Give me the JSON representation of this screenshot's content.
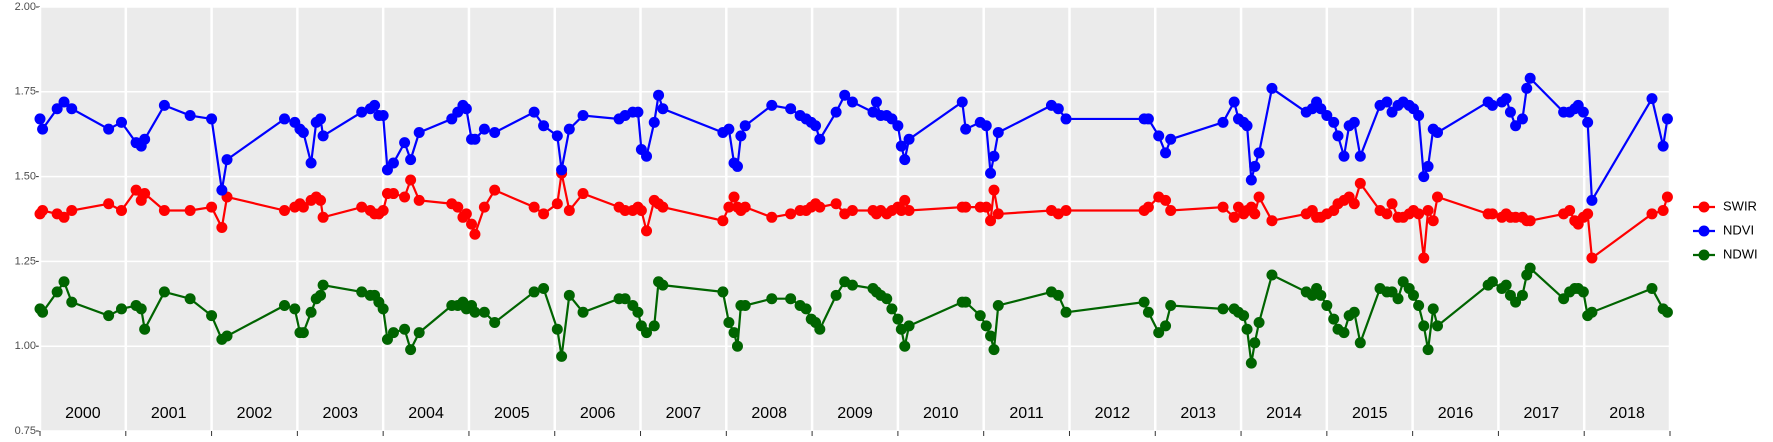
{
  "chart_data": {
    "type": "line",
    "x": [
      2000.0,
      2000.03,
      2000.2,
      2000.28,
      2000.37,
      2000.8,
      2000.95,
      2001.12,
      2001.18,
      2001.22,
      2001.45,
      2001.75,
      2002.0,
      2002.12,
      2002.18,
      2002.85,
      2002.97,
      2003.03,
      2003.07,
      2003.16,
      2003.22,
      2003.27,
      2003.3,
      2003.75,
      2003.85,
      2003.9,
      2003.95,
      2004.0,
      2004.05,
      2004.12,
      2004.25,
      2004.32,
      2004.42,
      2004.8,
      2004.87,
      2004.93,
      2004.97,
      2005.03,
      2005.07,
      2005.18,
      2005.3,
      2005.76,
      2005.87,
      2006.03,
      2006.08,
      2006.17,
      2006.33,
      2006.75,
      2006.82,
      2006.91,
      2006.97,
      2007.01,
      2007.07,
      2007.16,
      2007.21,
      2007.26,
      2007.96,
      2008.03,
      2008.09,
      2008.13,
      2008.17,
      2008.22,
      2008.53,
      2008.75,
      2008.86,
      2008.93,
      2008.99,
      2009.04,
      2009.09,
      2009.28,
      2009.38,
      2009.47,
      2009.71,
      2009.75,
      2009.8,
      2009.87,
      2009.93,
      2010.0,
      2010.04,
      2010.08,
      2010.13,
      2010.75,
      2010.79,
      2010.96,
      2011.03,
      2011.08,
      2011.12,
      2011.17,
      2011.79,
      2011.87,
      2011.96,
      2012.87,
      2012.92,
      2013.04,
      2013.12,
      2013.18,
      2013.79,
      2013.92,
      2013.97,
      2014.03,
      2014.07,
      2014.12,
      2014.16,
      2014.21,
      2014.36,
      2014.76,
      2014.83,
      2014.88,
      2014.93,
      2015.0,
      2015.08,
      2015.13,
      2015.2,
      2015.26,
      2015.32,
      2015.39,
      2015.62,
      2015.7,
      2015.76,
      2015.83,
      2015.89,
      2015.96,
      2016.01,
      2016.07,
      2016.13,
      2016.18,
      2016.24,
      2016.29,
      2016.88,
      2016.93,
      2017.04,
      2017.09,
      2017.14,
      2017.2,
      2017.28,
      2017.33,
      2017.37,
      2017.76,
      2017.83,
      2017.89,
      2017.93,
      2017.99,
      2018.04,
      2018.09,
      2018.79,
      2018.92,
      2018.97
    ],
    "series": [
      {
        "name": "SWIR",
        "color": "#ff0000",
        "values": [
          1.39,
          1.4,
          1.39,
          1.38,
          1.4,
          1.42,
          1.4,
          1.46,
          1.43,
          1.45,
          1.4,
          1.4,
          1.41,
          1.35,
          1.44,
          1.4,
          1.41,
          1.42,
          1.41,
          1.43,
          1.44,
          1.43,
          1.38,
          1.41,
          1.4,
          1.39,
          1.39,
          1.4,
          1.45,
          1.45,
          1.44,
          1.49,
          1.43,
          1.42,
          1.41,
          1.38,
          1.39,
          1.36,
          1.33,
          1.41,
          1.46,
          1.41,
          1.39,
          1.42,
          1.51,
          1.4,
          1.45,
          1.41,
          1.4,
          1.4,
          1.41,
          1.4,
          1.34,
          1.43,
          1.42,
          1.41,
          1.37,
          1.41,
          1.44,
          1.41,
          1.4,
          1.41,
          1.38,
          1.39,
          1.4,
          1.4,
          1.41,
          1.42,
          1.41,
          1.42,
          1.39,
          1.4,
          1.4,
          1.39,
          1.4,
          1.39,
          1.4,
          1.41,
          1.4,
          1.43,
          1.4,
          1.41,
          1.41,
          1.41,
          1.41,
          1.37,
          1.46,
          1.39,
          1.4,
          1.39,
          1.4,
          1.4,
          1.41,
          1.44,
          1.43,
          1.4,
          1.41,
          1.38,
          1.41,
          1.39,
          1.4,
          1.41,
          1.39,
          1.44,
          1.37,
          1.39,
          1.4,
          1.38,
          1.38,
          1.39,
          1.4,
          1.42,
          1.43,
          1.44,
          1.42,
          1.48,
          1.4,
          1.39,
          1.42,
          1.38,
          1.38,
          1.39,
          1.4,
          1.39,
          1.26,
          1.4,
          1.37,
          1.44,
          1.39,
          1.39,
          1.38,
          1.39,
          1.38,
          1.38,
          1.38,
          1.37,
          1.37,
          1.39,
          1.4,
          1.37,
          1.36,
          1.38,
          1.39,
          1.26,
          1.39,
          1.4,
          1.44
        ]
      },
      {
        "name": "NDVI",
        "color": "#0000ff",
        "values": [
          1.67,
          1.64,
          1.7,
          1.72,
          1.7,
          1.64,
          1.66,
          1.6,
          1.59,
          1.61,
          1.71,
          1.68,
          1.67,
          1.46,
          1.55,
          1.67,
          1.66,
          1.64,
          1.63,
          1.54,
          1.66,
          1.67,
          1.62,
          1.69,
          1.7,
          1.71,
          1.68,
          1.68,
          1.52,
          1.54,
          1.6,
          1.55,
          1.63,
          1.67,
          1.69,
          1.71,
          1.7,
          1.61,
          1.61,
          1.64,
          1.63,
          1.69,
          1.65,
          1.62,
          1.52,
          1.64,
          1.68,
          1.67,
          1.68,
          1.69,
          1.69,
          1.58,
          1.56,
          1.66,
          1.74,
          1.7,
          1.63,
          1.64,
          1.54,
          1.53,
          1.62,
          1.65,
          1.71,
          1.7,
          1.68,
          1.67,
          1.66,
          1.65,
          1.61,
          1.69,
          1.74,
          1.72,
          1.69,
          1.72,
          1.68,
          1.68,
          1.67,
          1.65,
          1.59,
          1.55,
          1.61,
          1.72,
          1.64,
          1.66,
          1.65,
          1.51,
          1.56,
          1.63,
          1.71,
          1.7,
          1.67,
          1.67,
          1.67,
          1.62,
          1.57,
          1.61,
          1.66,
          1.72,
          1.67,
          1.66,
          1.65,
          1.49,
          1.53,
          1.57,
          1.76,
          1.69,
          1.7,
          1.72,
          1.7,
          1.68,
          1.66,
          1.62,
          1.56,
          1.65,
          1.66,
          1.56,
          1.71,
          1.72,
          1.69,
          1.71,
          1.72,
          1.71,
          1.7,
          1.68,
          1.5,
          1.53,
          1.64,
          1.63,
          1.72,
          1.71,
          1.72,
          1.73,
          1.69,
          1.65,
          1.67,
          1.76,
          1.79,
          1.69,
          1.69,
          1.7,
          1.71,
          1.69,
          1.66,
          1.43,
          1.73,
          1.59,
          1.67
        ]
      },
      {
        "name": "NDWI",
        "color": "#006400",
        "values": [
          1.11,
          1.1,
          1.16,
          1.19,
          1.13,
          1.09,
          1.11,
          1.12,
          1.11,
          1.05,
          1.16,
          1.14,
          1.09,
          1.02,
          1.03,
          1.12,
          1.11,
          1.04,
          1.04,
          1.1,
          1.14,
          1.15,
          1.18,
          1.16,
          1.15,
          1.15,
          1.13,
          1.11,
          1.02,
          1.04,
          1.05,
          0.99,
          1.04,
          1.12,
          1.12,
          1.13,
          1.11,
          1.12,
          1.1,
          1.1,
          1.07,
          1.16,
          1.17,
          1.05,
          0.97,
          1.15,
          1.1,
          1.14,
          1.14,
          1.12,
          1.1,
          1.06,
          1.04,
          1.06,
          1.19,
          1.18,
          1.16,
          1.07,
          1.04,
          1.0,
          1.12,
          1.12,
          1.14,
          1.14,
          1.12,
          1.11,
          1.08,
          1.07,
          1.05,
          1.15,
          1.19,
          1.18,
          1.17,
          1.16,
          1.15,
          1.14,
          1.11,
          1.08,
          1.05,
          1.0,
          1.06,
          1.13,
          1.13,
          1.09,
          1.06,
          1.03,
          0.99,
          1.12,
          1.16,
          1.15,
          1.1,
          1.13,
          1.1,
          1.04,
          1.06,
          1.12,
          1.11,
          1.11,
          1.1,
          1.09,
          1.05,
          0.95,
          1.01,
          1.07,
          1.21,
          1.16,
          1.15,
          1.17,
          1.15,
          1.12,
          1.08,
          1.05,
          1.04,
          1.09,
          1.1,
          1.01,
          1.17,
          1.16,
          1.16,
          1.14,
          1.19,
          1.17,
          1.15,
          1.12,
          1.06,
          0.99,
          1.11,
          1.06,
          1.18,
          1.19,
          1.17,
          1.18,
          1.15,
          1.13,
          1.15,
          1.21,
          1.23,
          1.14,
          1.16,
          1.17,
          1.17,
          1.16,
          1.09,
          1.1,
          1.17,
          1.11,
          1.1
        ]
      }
    ],
    "xlim": [
      2000,
      2019
    ],
    "xticks": [
      2000,
      2001,
      2002,
      2003,
      2004,
      2005,
      2006,
      2007,
      2008,
      2009,
      2010,
      2011,
      2012,
      2013,
      2014,
      2015,
      2016,
      2017,
      2018,
      2019
    ],
    "year_labels": [
      2000,
      2001,
      2002,
      2003,
      2004,
      2005,
      2006,
      2007,
      2008,
      2009,
      2010,
      2011,
      2012,
      2013,
      2014,
      2015,
      2016,
      2017,
      2018
    ],
    "ylim": [
      0.75,
      2.0
    ],
    "yticks": [
      0.75,
      {
        "value": 1.0,
        "label": "1.00"
      },
      1.25,
      {
        "value": 1.5,
        "label": "1.50"
      },
      1.75,
      {
        "value": 2.0,
        "label": "2.00"
      }
    ],
    "grid": true
  }
}
